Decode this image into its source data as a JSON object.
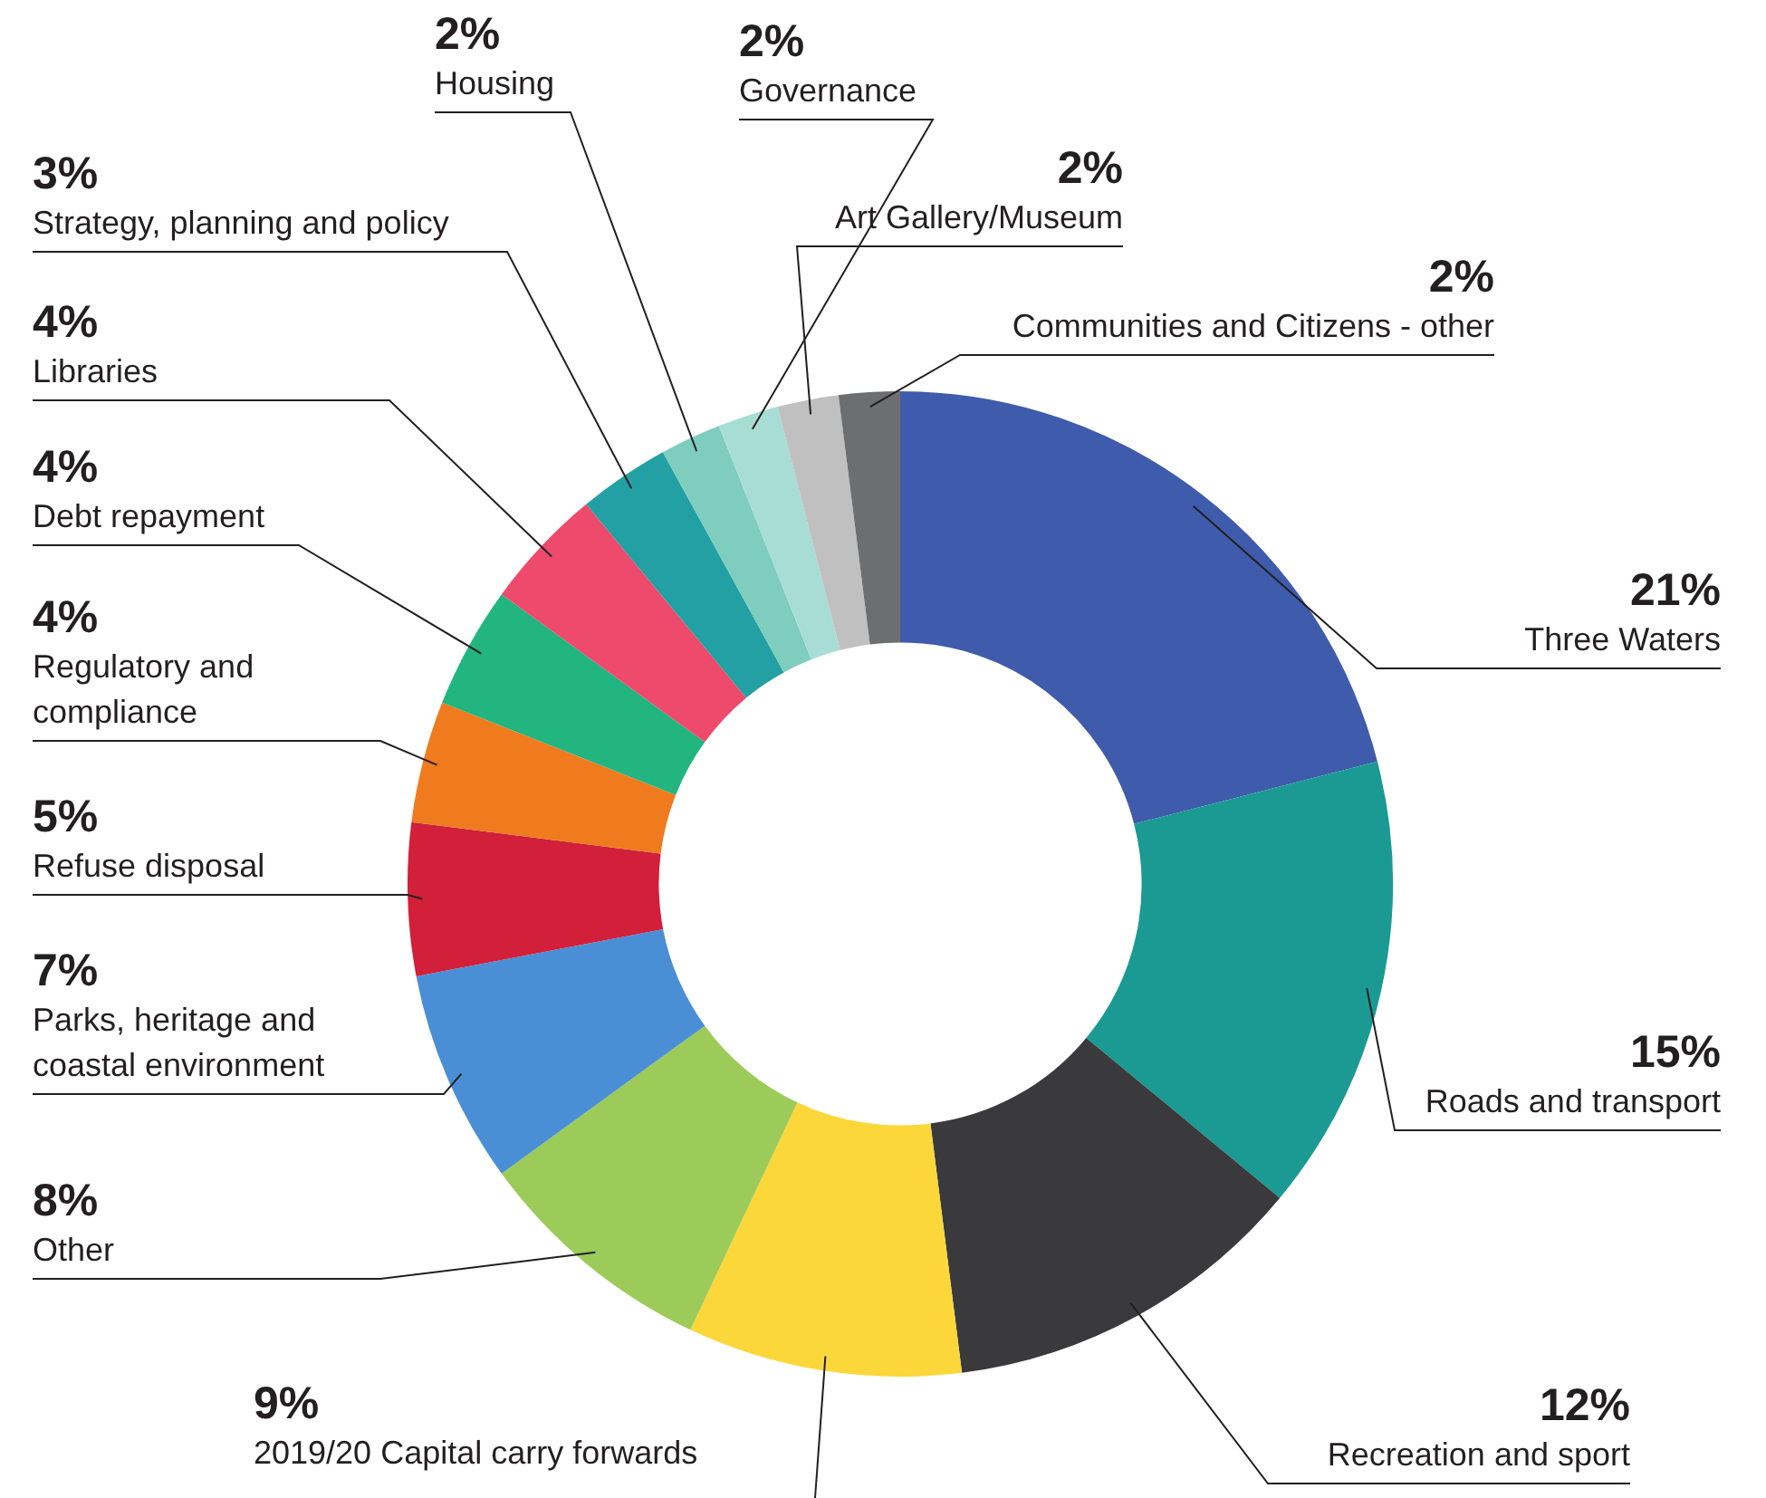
{
  "chart_data": {
    "type": "donut",
    "categories": [
      "Three Waters",
      "Roads and transport",
      "Recreation and sport",
      "2019/20 Capital carry forwards",
      "Other",
      "Parks, heritage and coastal environment",
      "Refuse disposal",
      "Regulatory and compliance",
      "Debt repayment",
      "Libraries",
      "Strategy, planning and policy",
      "Housing",
      "Governance",
      "Art Gallery/Museum",
      "Communities and Citizens - other"
    ],
    "values": [
      21,
      15,
      12,
      9,
      8,
      7,
      5,
      4,
      4,
      4,
      3,
      2,
      2,
      2,
      2
    ],
    "value_labels": [
      "21%",
      "15%",
      "12%",
      "9%",
      "8%",
      "7%",
      "5%",
      "4%",
      "4%",
      "4%",
      "3%",
      "2%",
      "2%",
      "2%",
      "2%"
    ],
    "colors": [
      "#3f5bab",
      "#1a9a92",
      "#3a3a3c",
      "#fcd73a",
      "#9ccb5a",
      "#4a8fd6",
      "#d21f3a",
      "#f07b1e",
      "#22b57f",
      "#ee4a6b",
      "#23a0a3",
      "#7ecdbf",
      "#a8ddd6",
      "#c0c0c0",
      "#6d6e70"
    ],
    "legend": false
  }
}
